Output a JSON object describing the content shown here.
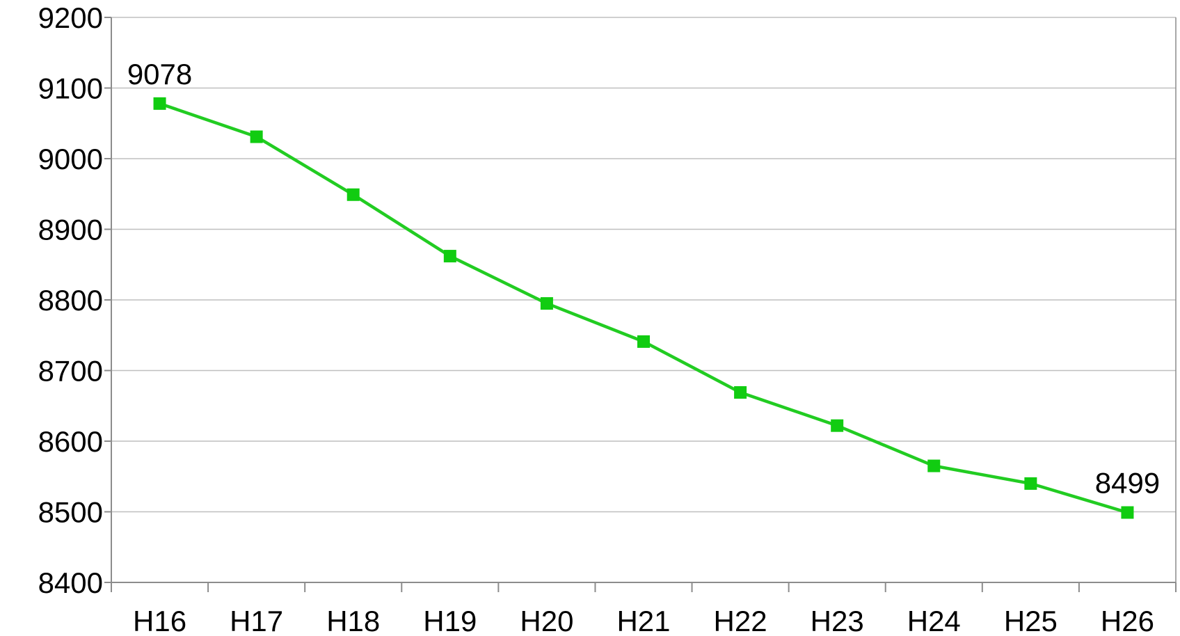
{
  "chart_data": {
    "type": "line",
    "title": "",
    "xlabel": "",
    "ylabel": "",
    "categories": [
      "H16",
      "H17",
      "H18",
      "H19",
      "H20",
      "H21",
      "H22",
      "H23",
      "H24",
      "H25",
      "H26"
    ],
    "series": [
      {
        "values": [
          9078,
          9031,
          8949,
          8862,
          8795,
          8741,
          8669,
          8622,
          8565,
          8540,
          8499
        ],
        "color": "#22cc22"
      }
    ],
    "ylim": [
      8400,
      9200
    ],
    "yticks": [
      "8400",
      "8500",
      "8600",
      "8700",
      "8800",
      "8900",
      "9000",
      "9100",
      "9200"
    ],
    "grid": true,
    "legend": "none",
    "data_labels": [
      {
        "index": 0,
        "text": "9078"
      },
      {
        "index": 10,
        "text": "8499"
      }
    ],
    "colors": {
      "line": "#22cc22",
      "marker": "#11cc11",
      "grid": "#bfbfbf",
      "axis": "#8c8c8c"
    }
  }
}
